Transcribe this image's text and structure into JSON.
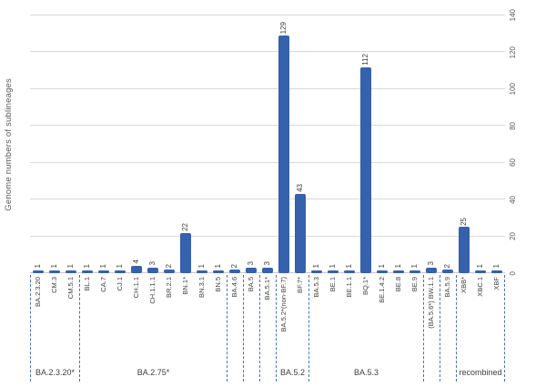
{
  "chart_data": {
    "type": "bar",
    "title": "",
    "ylabel": "Genome numbers of sublineages",
    "xlabel": "",
    "ylim": [
      0,
      140
    ],
    "yticks": [
      0,
      20,
      40,
      60,
      80,
      100,
      120,
      140
    ],
    "grid": "horizontal",
    "yaxis_side": "right",
    "legend": "none",
    "bar_color": "#3561ad",
    "gridline_color": "#d9d9d9",
    "group_line_color": "#4472c4",
    "categories": [
      "BA.2.3.20",
      "CM.3",
      "CM.5.1",
      "BL.1",
      "CA.7",
      "CJ.1",
      "CH.1.1",
      "CH.1.1.1",
      "BR.2.1",
      "BN.1*",
      "BN.3.1",
      "BN.5",
      "BA.4.6",
      "BA.5",
      "BA.5.1*",
      "BA.5.2*(non-BF.7)",
      "BF.7*",
      "BA.5.3",
      "BE.1",
      "BE.1.1",
      "BQ.1*",
      "BE.1.4.2",
      "BE.8",
      "BE.9",
      "(BA.5.6*) BW.1.1",
      "BA.5.9",
      "XBB*",
      "XBC.1",
      "XBF"
    ],
    "values": [
      1,
      1,
      1,
      1,
      1,
      1,
      4,
      3,
      2,
      22,
      1,
      1,
      2,
      3,
      3,
      129,
      43,
      1,
      1,
      1,
      112,
      1,
      1,
      1,
      3,
      2,
      25,
      1,
      1
    ],
    "groups": [
      {
        "label": "BA.2.3.20*",
        "span": 3
      },
      {
        "label": "BA.2.75*",
        "span": 9
      },
      {
        "label": "",
        "span": 1
      },
      {
        "label": "",
        "span": 1
      },
      {
        "label": "",
        "span": 1
      },
      {
        "label": "BA.5.2",
        "span": 2
      },
      {
        "label": "BA.5.3",
        "span": 7
      },
      {
        "label": "",
        "span": 1
      },
      {
        "label": "",
        "span": 1
      },
      {
        "label": "recombined",
        "span": 3
      }
    ]
  }
}
